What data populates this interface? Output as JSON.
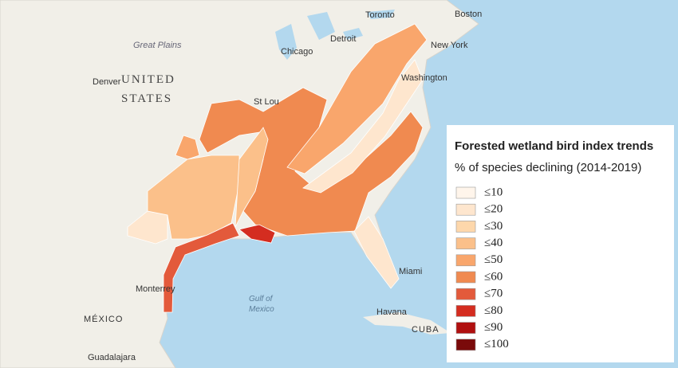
{
  "legend": {
    "title": "Forested wetland bird index trends",
    "subtitle": "% of species declining (2014-2019)",
    "items": [
      {
        "label": "≤10",
        "color": "#fff5eb"
      },
      {
        "label": "≤20",
        "color": "#fee6ce"
      },
      {
        "label": "≤30",
        "color": "#fdd7ab"
      },
      {
        "label": "≤40",
        "color": "#fbc08a"
      },
      {
        "label": "≤50",
        "color": "#f9a66c"
      },
      {
        "label": "≤60",
        "color": "#f08a50"
      },
      {
        "label": "≤70",
        "color": "#e35a3b"
      },
      {
        "label": "≤80",
        "color": "#d42d20"
      },
      {
        "label": "≤90",
        "color": "#b01010"
      },
      {
        "label": "≤100",
        "color": "#7a0a0a"
      }
    ]
  },
  "places": [
    "Toronto",
    "Boston",
    "Great Plains",
    "Detroit",
    "New York",
    "Chicago",
    "Denver",
    "UNITED",
    "STATES",
    "St Lou",
    "Washington",
    "Miami",
    "Monterrey",
    "Gulf of",
    "Mexico",
    "Havana",
    "CUBA",
    "MÉXICO",
    "Guadalajara"
  ]
}
